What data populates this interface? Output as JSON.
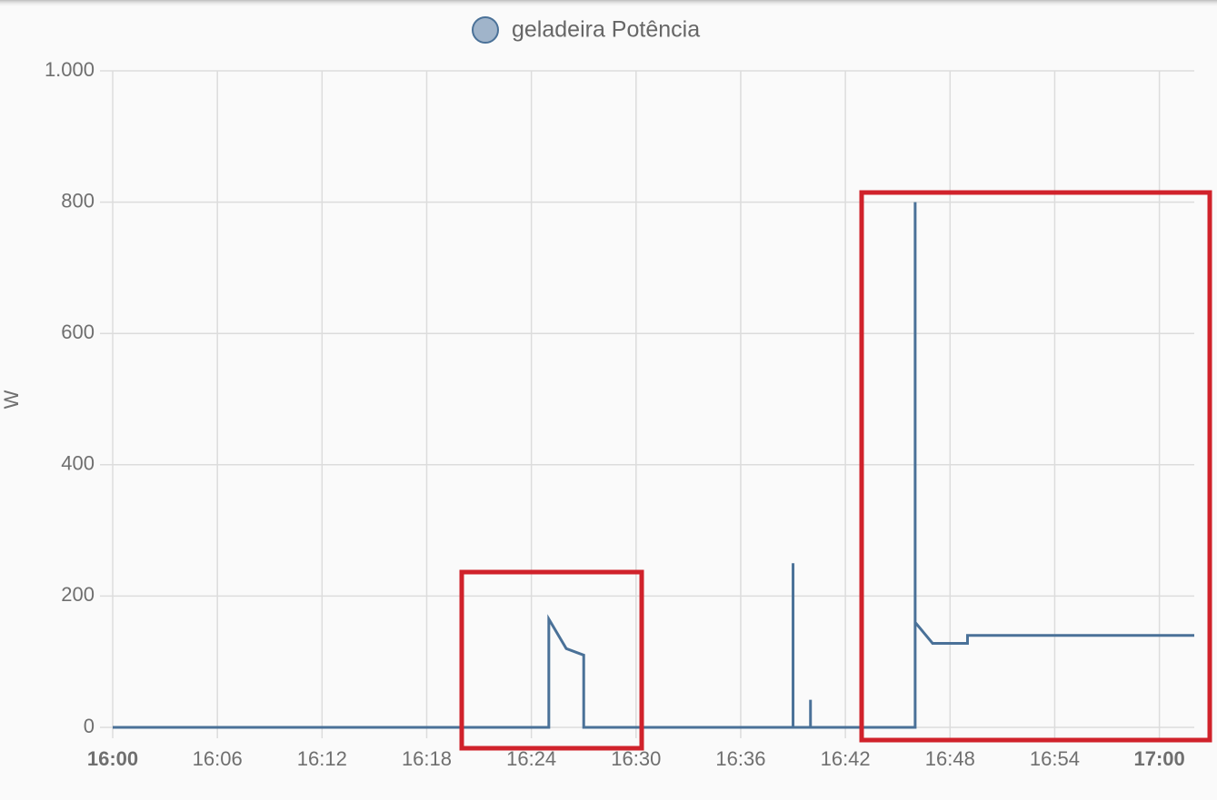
{
  "chart_data": {
    "type": "line",
    "y_label": "W",
    "x": [
      "16:00",
      "16:25",
      "16:25",
      "16:26",
      "16:27",
      "16:27",
      "16:39",
      "16:39",
      "16:39",
      "16:40",
      "16:40",
      "16:40",
      "16:46",
      "16:46",
      "16:46",
      "16:47",
      "16:49",
      "16:49",
      "17:02"
    ],
    "series": [
      {
        "name": "geladeira Potência",
        "color": "#4a7198",
        "values": [
          0,
          0,
          165,
          120,
          110,
          0,
          0,
          250,
          0,
          0,
          42,
          0,
          0,
          800,
          160,
          128,
          128,
          140,
          140
        ]
      }
    ],
    "xlim": [
      "16:00",
      "17:02"
    ],
    "xticks": [
      "16:00",
      "16:06",
      "16:12",
      "16:18",
      "16:24",
      "16:30",
      "16:36",
      "16:42",
      "16:48",
      "16:54",
      "17:00"
    ],
    "ylim": [
      0,
      1000
    ],
    "yticks": [
      0,
      200,
      400,
      600,
      800,
      {
        "value": 1000,
        "label": "1.000"
      }
    ],
    "grid": true
  }
}
